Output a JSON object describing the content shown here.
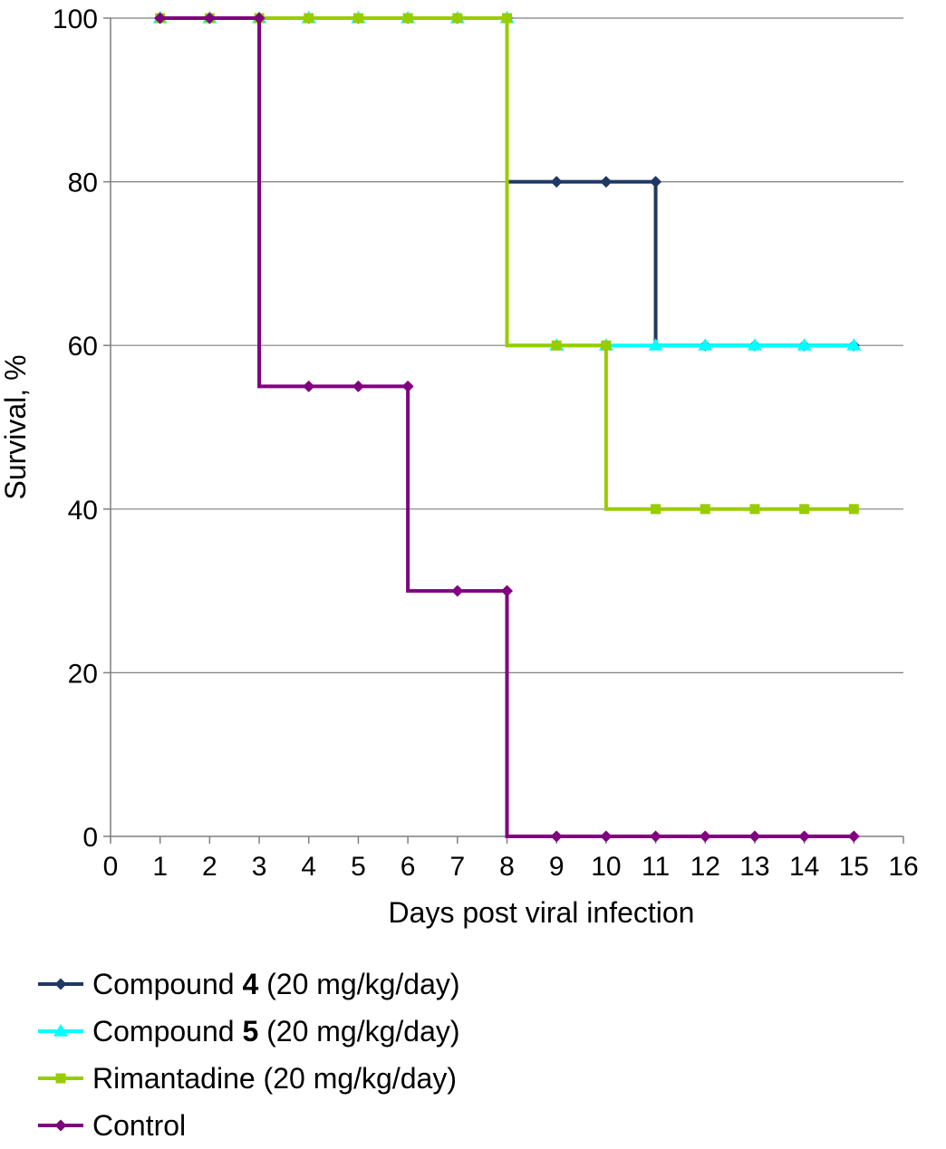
{
  "chart_data": {
    "type": "line",
    "step": true,
    "xlabel": "Days post viral infection",
    "ylabel": "Survival, %",
    "xlim": [
      0,
      16
    ],
    "ylim": [
      0,
      100
    ],
    "xticks": [
      0,
      1,
      2,
      3,
      4,
      5,
      6,
      7,
      8,
      9,
      10,
      11,
      12,
      13,
      14,
      15,
      16
    ],
    "yticks": [
      0,
      20,
      40,
      60,
      80,
      100
    ],
    "grid": "horizontal",
    "legend_position": "bottom",
    "series": [
      {
        "name": "Compound 4 (20 mg/kg/day)",
        "name_parts": [
          "Compound ",
          "4",
          " (20 mg/kg/day)"
        ],
        "color": "#1f3864",
        "marker": "diamond",
        "x": [
          1,
          2,
          3,
          4,
          5,
          6,
          7,
          8,
          9,
          10,
          11,
          12,
          13,
          14,
          15
        ],
        "values": [
          100,
          100,
          100,
          100,
          100,
          100,
          100,
          100,
          80,
          80,
          80,
          60,
          60,
          60,
          60
        ]
      },
      {
        "name": "Compound 5 (20 mg/kg/day)",
        "name_parts": [
          "Compound ",
          "5",
          " (20 mg/kg/day)"
        ],
        "color": "#00ffff",
        "marker": "triangle",
        "x": [
          1,
          2,
          3,
          4,
          5,
          6,
          7,
          8,
          9,
          10,
          11,
          12,
          13,
          14,
          15
        ],
        "values": [
          100,
          100,
          100,
          100,
          100,
          100,
          100,
          100,
          60,
          60,
          60,
          60,
          60,
          60,
          60
        ]
      },
      {
        "name": "Rimantadine (20 mg/kg/day)",
        "name_parts": [
          "Rimantadine (20 mg/kg/day)"
        ],
        "color": "#99cc00",
        "marker": "square",
        "x": [
          1,
          2,
          3,
          4,
          5,
          6,
          7,
          8,
          9,
          10,
          11,
          12,
          13,
          14,
          15
        ],
        "values": [
          100,
          100,
          100,
          100,
          100,
          100,
          100,
          100,
          60,
          60,
          40,
          40,
          40,
          40,
          40
        ]
      },
      {
        "name": "Control",
        "name_parts": [
          "Control"
        ],
        "color": "#800080",
        "marker": "diamond",
        "x": [
          1,
          2,
          3,
          4,
          5,
          6,
          7,
          8,
          9,
          10,
          11,
          12,
          13,
          14,
          15
        ],
        "values": [
          100,
          100,
          100,
          55,
          55,
          55,
          30,
          30,
          0,
          0,
          0,
          0,
          0,
          0,
          0
        ]
      }
    ]
  }
}
